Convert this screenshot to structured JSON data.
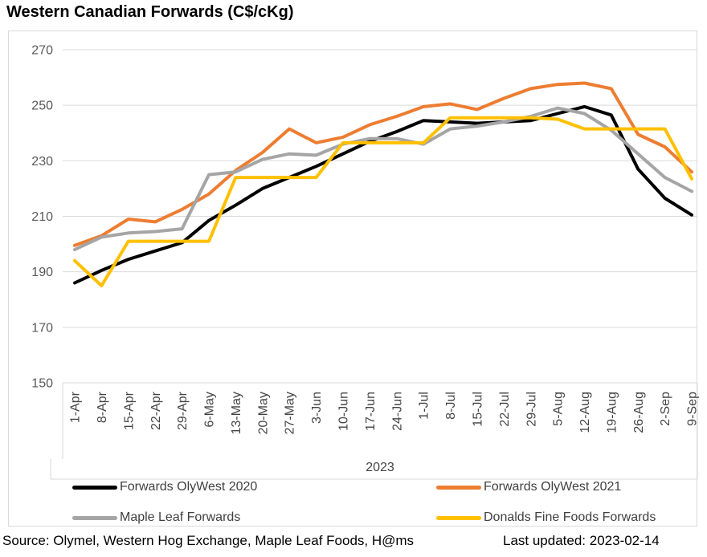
{
  "title": "Western Canadian Forwards (C$/cKg)",
  "footer": {
    "source": "Source: Olymel, Western Hog Exchange, Maple Leaf Foods, H@ms",
    "last_updated": "Last updated: 2023-02-14"
  },
  "colors": {
    "gridline": "#d9d9d9",
    "chart_border": "#d9d9d9",
    "y_tick_text": "#595959",
    "x_tick_text": "#444444",
    "legend_text": "#404040"
  },
  "chart_data": {
    "type": "line",
    "title": "Western Canadian Forwards (C$/cKg)",
    "xlabel": "",
    "ylabel": "",
    "x_axis_group_label": "2023",
    "ylim": [
      150,
      270
    ],
    "y_ticks": [
      150,
      170,
      190,
      210,
      230,
      250,
      270
    ],
    "grid": true,
    "legend_position": "bottom",
    "categories": [
      "1-Apr",
      "8-Apr",
      "15-Apr",
      "22-Apr",
      "29-Apr",
      "6-May",
      "13-May",
      "20-May",
      "27-May",
      "3-Jun",
      "10-Jun",
      "17-Jun",
      "24-Jun",
      "1-Jul",
      "8-Jul",
      "15-Jul",
      "22-Jul",
      "29-Jul",
      "5-Aug",
      "12-Aug",
      "19-Aug",
      "26-Aug",
      "2-Sep",
      "9-Sep"
    ],
    "series": [
      {
        "name": "Forwards OlyWest 2020",
        "color": "#000000",
        "values": [
          186,
          190.5,
          194.5,
          197.5,
          200.5,
          208.5,
          214,
          220,
          224,
          228,
          232.5,
          237,
          240.5,
          244.5,
          244,
          243.5,
          244,
          244.5,
          247,
          249.5,
          246.5,
          227,
          216.5,
          210.5
        ]
      },
      {
        "name": "Forwards OlyWest 2021",
        "color": "#ED7D31",
        "values": [
          199.5,
          203,
          209,
          208,
          212.5,
          218,
          226.5,
          233,
          241.5,
          236.5,
          238.5,
          243,
          246,
          249.5,
          250.5,
          248.5,
          252.5,
          256,
          257.5,
          258,
          256,
          239.5,
          235,
          226
        ]
      },
      {
        "name": "Maple Leaf Forwards",
        "color": "#A5A5A5",
        "values": [
          198,
          202.5,
          204,
          204.5,
          205.5,
          225,
          226,
          230.5,
          232.5,
          232,
          236,
          238,
          238,
          236,
          241.5,
          242.5,
          244,
          246,
          249,
          247,
          241,
          232.5,
          224,
          219
        ]
      },
      {
        "name": "Donalds Fine Foods Forwards",
        "color": "#FFC000",
        "values": [
          194,
          185,
          201,
          201,
          201,
          201,
          224,
          224,
          224,
          224,
          236.5,
          236.5,
          236.5,
          236.5,
          245.5,
          245.5,
          245.5,
          245.5,
          245,
          241.5,
          241.5,
          241.5,
          241.5,
          223.5
        ]
      }
    ]
  }
}
